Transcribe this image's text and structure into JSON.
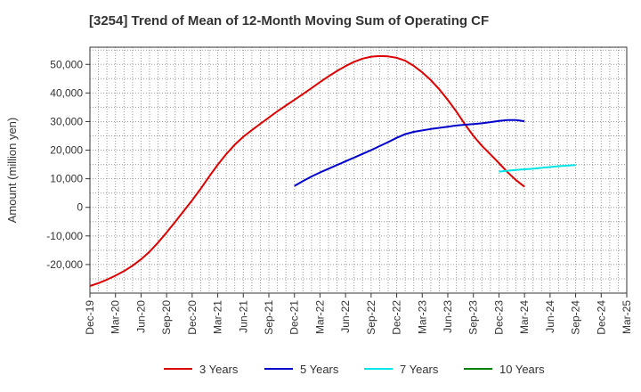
{
  "chart_data": {
    "type": "line",
    "title": "[3254]  Trend of Mean of 12-Month Moving Sum of Operating CF",
    "xlabel": "",
    "ylabel": "Amount (million yen)",
    "ylim": [
      -30000,
      56000
    ],
    "grid": true,
    "legend_position": "bottom",
    "x_tick_labels": [
      "Dec-19",
      "Mar-20",
      "Jun-20",
      "Sep-20",
      "Dec-20",
      "Mar-21",
      "Jun-21",
      "Sep-21",
      "Dec-21",
      "Mar-22",
      "Jun-22",
      "Sep-22",
      "Dec-22",
      "Mar-23",
      "Jun-23",
      "Sep-23",
      "Dec-23",
      "Mar-24",
      "Jun-24",
      "Sep-24",
      "Dec-24",
      "Mar-25"
    ],
    "y_ticks": [
      -20000,
      -10000,
      0,
      10000,
      20000,
      30000,
      40000,
      50000
    ],
    "y_tick_labels": [
      "-20,000",
      "-10,000",
      "0",
      "10,000",
      "20,000",
      "30,000",
      "40,000",
      "50,000"
    ],
    "series": [
      {
        "name": "3 Years",
        "color": "#dd0000",
        "x": [
          0,
          1,
          2,
          3,
          4,
          5,
          6,
          7,
          8,
          9,
          10,
          11,
          12,
          13,
          14,
          15,
          16,
          17,
          18,
          19,
          20,
          21,
          22,
          23,
          24,
          25,
          26,
          27,
          28,
          29,
          30,
          31,
          32,
          33,
          34,
          35,
          36,
          37,
          38,
          39,
          40,
          41,
          42,
          43,
          44,
          45,
          46,
          47,
          48,
          49,
          50,
          51,
          52,
          53,
          54,
          55,
          56,
          57,
          58,
          59,
          60
        ],
        "values": [
          -27500,
          -26500,
          -25300,
          -23900,
          -22300,
          -20400,
          -18200,
          -15500,
          -12300,
          -8800,
          -5100,
          -1300,
          2500,
          6500,
          10800,
          14900,
          18600,
          21900,
          24700,
          27000,
          29200,
          31400,
          33600,
          35600,
          37600,
          39600,
          41700,
          43800,
          45800,
          47700,
          49400,
          50900,
          52000,
          52700,
          52900,
          52800,
          52300,
          51300,
          49500,
          47200,
          44500,
          41300,
          37600,
          33500,
          29100,
          25000,
          21500,
          18500,
          15500,
          12300,
          9500,
          7200,
          null,
          null,
          null,
          null,
          null,
          null,
          null,
          null,
          null
        ]
      },
      {
        "name": "5 Years",
        "color": "#0000cc",
        "x": [
          24,
          25,
          26,
          27,
          28,
          29,
          30,
          31,
          32,
          33,
          34,
          35,
          36,
          37,
          38,
          39,
          40,
          41,
          42,
          43,
          44,
          45,
          46,
          47,
          48,
          49,
          50,
          51,
          52,
          53,
          54,
          55,
          56,
          57,
          58,
          59,
          60
        ],
        "values": [
          7500,
          9200,
          10800,
          12200,
          13500,
          14800,
          16100,
          17400,
          18700,
          20000,
          21400,
          22800,
          24300,
          25600,
          26400,
          26900,
          27400,
          27800,
          28200,
          28600,
          28900,
          29100,
          29400,
          29800,
          30200,
          30500,
          30500,
          30100,
          null,
          null,
          null,
          null,
          null,
          null,
          null,
          null,
          null
        ]
      },
      {
        "name": "7 Years",
        "color": "#00e5e5",
        "x": [
          48,
          49,
          50,
          51,
          52,
          53,
          54,
          55,
          56,
          57,
          58,
          59,
          60
        ],
        "values": [
          12500,
          12800,
          13100,
          13300,
          13500,
          13800,
          14100,
          14400,
          14600,
          14800,
          null,
          null,
          null
        ]
      },
      {
        "name": "10 Years",
        "color": "#008000",
        "x": [],
        "values": []
      }
    ],
    "x_range": [
      0,
      63
    ]
  }
}
